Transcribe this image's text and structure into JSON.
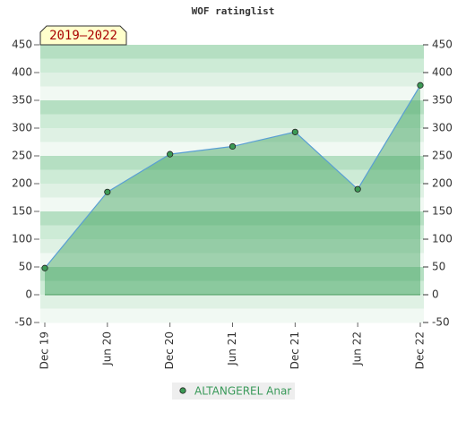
{
  "chart_data": {
    "type": "area",
    "title": "WOF ratinglist",
    "annotation": "2019–2022",
    "categories": [
      "Dec 19",
      "Jun 20",
      "Dec 20",
      "Jun 21",
      "Dec 21",
      "Jun 22",
      "Dec 22"
    ],
    "series": [
      {
        "name": "ALTANGEREL Anar",
        "color": "#5a9fd4",
        "values": [
          48,
          185,
          253,
          267,
          293,
          190,
          377
        ]
      }
    ],
    "ylim": [
      -50,
      450
    ],
    "yticks": [
      -50,
      0,
      50,
      100,
      150,
      200,
      250,
      300,
      350,
      400,
      450
    ],
    "y2lim": [
      -50,
      450
    ],
    "y2ticks": [
      -50,
      0,
      50,
      100,
      150,
      200,
      250,
      300,
      350,
      400,
      450
    ],
    "legend": "bottom"
  }
}
